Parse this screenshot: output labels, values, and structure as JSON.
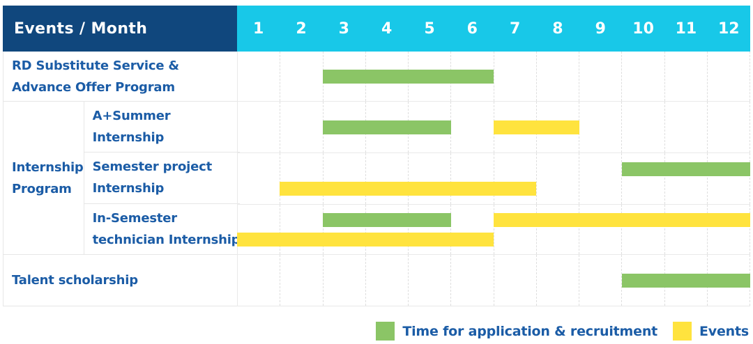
{
  "colors": {
    "header_background": "#10477D",
    "months_background": "#18C8E8",
    "header_text": "#FFFFFF",
    "label_text": "#1B5CA6",
    "application_green": "#8BC566",
    "events_yellow": "#FFE33E",
    "grid_line": "#E6E6E6"
  },
  "table": {
    "corner_label": "Events / Month"
  },
  "labels_column": {
    "row1_lines": [
      "RD Substitute Service &",
      "Advance Offer Program"
    ],
    "group_lines": [
      "Internship",
      "Program"
    ],
    "sub_rows": [
      [
        "A+Summer",
        "Internship"
      ],
      [
        "Semester project",
        "Internship"
      ],
      [
        "In-Semester",
        "technician Internship"
      ]
    ],
    "row5": "Talent scholarship"
  },
  "chart_data": {
    "type": "bar",
    "subtype": "gantt",
    "title": "Events / Month",
    "x_unit": "month",
    "x_ticks": [
      "1",
      "2",
      "3",
      "4",
      "5",
      "6",
      "7",
      "8",
      "9",
      "10",
      "11",
      "12"
    ],
    "x_range": [
      1,
      12
    ],
    "grid": true,
    "legend_position": "bottom-right",
    "series": {
      "application": {
        "label": "Time for application & recruitment",
        "color": "#8BC566"
      },
      "events": {
        "label": "Events",
        "color": "#FFE33E"
      }
    },
    "rows": [
      {
        "category": "RD Substitute Service & Advance Offer Program",
        "group": "",
        "segments": [
          {
            "series": "application",
            "start_month": 3,
            "end_month": 6,
            "lane": "mid"
          }
        ]
      },
      {
        "category": "A+Summer Internship",
        "group": "Internship Program",
        "segments": [
          {
            "series": "application",
            "start_month": 3,
            "end_month": 5,
            "lane": "mid"
          },
          {
            "series": "events",
            "start_month": 7,
            "end_month": 8,
            "lane": "mid"
          }
        ]
      },
      {
        "category": "Semester project Internship",
        "group": "Internship Program",
        "segments": [
          {
            "series": "application",
            "start_month": 10,
            "end_month": 12,
            "lane": "top"
          },
          {
            "series": "events",
            "start_month": 2,
            "end_month": 7,
            "lane": "bottom"
          }
        ]
      },
      {
        "category": "In-Semester technician Internship",
        "group": "Internship Program",
        "segments": [
          {
            "series": "application",
            "start_month": 3,
            "end_month": 5,
            "lane": "top"
          },
          {
            "series": "events",
            "start_month": 7,
            "end_month": 12,
            "lane": "top"
          },
          {
            "series": "events",
            "start_month": 1,
            "end_month": 6,
            "lane": "bottom"
          }
        ]
      },
      {
        "category": "Talent scholarship",
        "group": "",
        "segments": [
          {
            "series": "application",
            "start_month": 10,
            "end_month": 12,
            "lane": "mid"
          }
        ]
      }
    ]
  }
}
